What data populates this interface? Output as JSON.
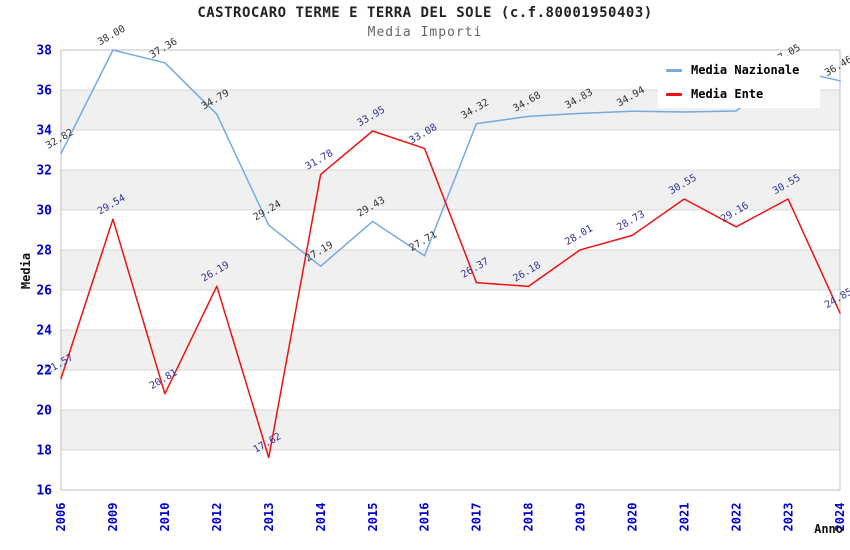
{
  "chart_data": {
    "type": "line",
    "title": "CASTROCARO TERME E TERRA DEL SOLE (c.f.80001950403)",
    "subtitle": "Media Importi",
    "xlabel": "Anno",
    "ylabel": "Media",
    "ylim": [
      16,
      38
    ],
    "ytick_step": 2,
    "grid": "horizontal-bands",
    "legend_position": "top-right",
    "categories": [
      "2006",
      "2009",
      "2010",
      "2012",
      "2013",
      "2014",
      "2015",
      "2016",
      "2017",
      "2018",
      "2019",
      "2020",
      "2021",
      "2022",
      "2023",
      "2024"
    ],
    "series": [
      {
        "name": "Media Nazionale",
        "color": "#74aade",
        "label_color": "#333333",
        "values": [
          32.82,
          38.0,
          37.36,
          34.79,
          29.24,
          27.19,
          29.43,
          27.71,
          34.32,
          34.68,
          34.83,
          34.94,
          34.9,
          34.95,
          37.05,
          36.46
        ],
        "point_labels": [
          "32.82",
          "38.00",
          "37.36",
          "34.79",
          "29.24",
          "27.19",
          "29.43",
          "27.71",
          "34.32",
          "34.68",
          "34.83",
          "34.94",
          "34.90",
          "34.95",
          "37.05",
          "36.46"
        ]
      },
      {
        "name": "Media Ente",
        "color": "#ee1111",
        "label_color": "#333399",
        "values": [
          21.57,
          29.54,
          20.81,
          26.19,
          17.62,
          31.78,
          33.95,
          33.08,
          26.37,
          26.18,
          28.01,
          28.73,
          30.55,
          29.16,
          30.55,
          24.85
        ],
        "point_labels": [
          "21.57",
          "29.54",
          "20.81",
          "26.19",
          "17.62",
          "31.78",
          "33.95",
          "33.08",
          "26.37",
          "26.18",
          "28.01",
          "28.73",
          "30.55",
          "29.16",
          "30.55",
          "24.85"
        ]
      }
    ]
  },
  "style": {
    "background": "#ffffff",
    "tick_color": "#0000cc",
    "band_color": "#f0f0f0",
    "grid_color": "#d9d9d9",
    "border_color": "#bfbfbf",
    "title_color": "#222222",
    "subtitle_color": "#666666"
  }
}
